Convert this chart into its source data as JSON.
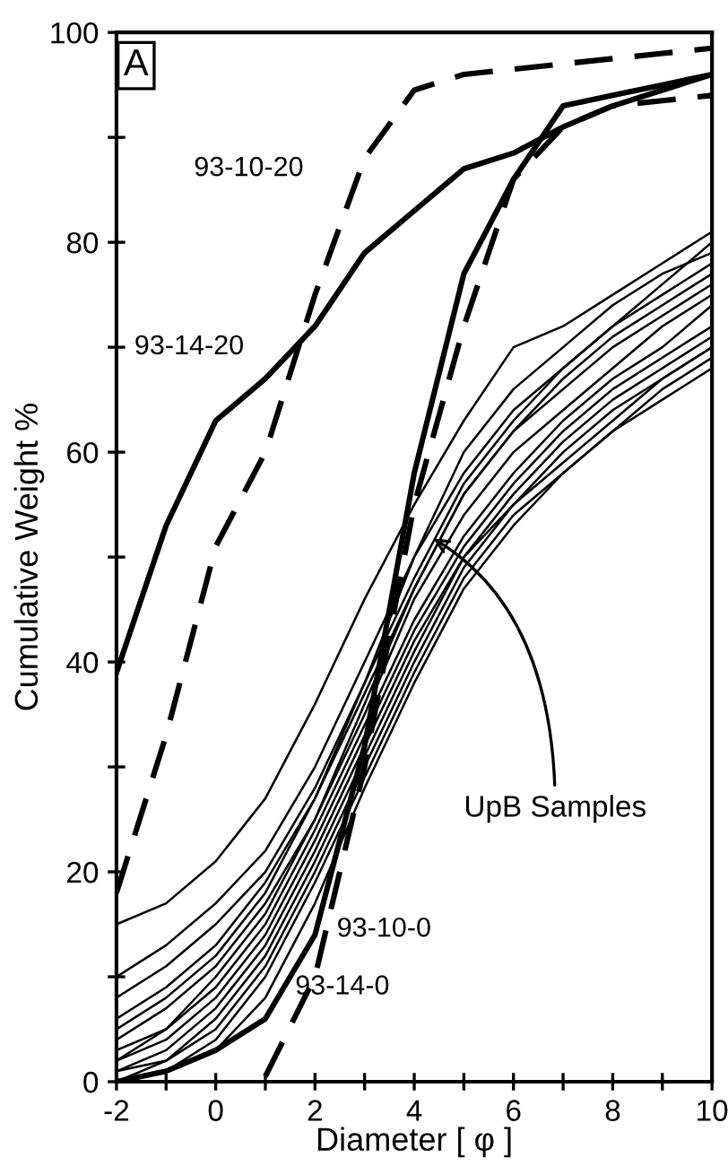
{
  "chart_data": {
    "type": "line",
    "xlabel": "Diameter [ φ ]",
    "ylabel": "Cumulative Weight %",
    "x": [
      -2,
      -1,
      0,
      1,
      2,
      3,
      4,
      5,
      6,
      7,
      8,
      9,
      10
    ],
    "xlim": [
      -2,
      10
    ],
    "ylim": [
      0,
      100
    ],
    "xticks": [
      -2,
      {
        "value": -1,
        "label": null
      },
      0,
      {
        "value": 1,
        "label": null
      },
      2,
      {
        "value": 3,
        "label": null
      },
      4,
      {
        "value": 5,
        "label": null
      },
      6,
      {
        "value": 7,
        "label": null
      },
      8,
      {
        "value": 9,
        "label": null
      },
      10
    ],
    "yticks": [
      0,
      {
        "value": 10,
        "label": null
      },
      20,
      {
        "value": 30,
        "label": null
      },
      40,
      {
        "value": 50,
        "label": null
      },
      60,
      {
        "value": 70,
        "label": null
      },
      80,
      {
        "value": 90,
        "label": null
      },
      100
    ],
    "grid": false,
    "legend": false,
    "marker": "none",
    "annotations": [
      "A",
      "UpB Samples"
    ],
    "series": [
      {
        "name": "93-10-20",
        "color": "#000000",
        "line_style": "dashed",
        "values": [
          18,
          33,
          51,
          60,
          75,
          88,
          94.5,
          96,
          96.5,
          97,
          97.5,
          98,
          98.5
        ]
      },
      {
        "name": "93-14-20",
        "color": "#000000",
        "line_style": "solid",
        "values": [
          39,
          53,
          63,
          67,
          72,
          79,
          83,
          87,
          88.5,
          91,
          93,
          94.5,
          96
        ]
      },
      {
        "name": "93-10-0",
        "color": "#000000",
        "line_style": "dashed",
        "values": [
          null,
          null,
          null,
          0.5,
          10,
          30,
          55,
          72,
          86,
          91,
          93,
          93.5,
          94
        ]
      },
      {
        "name": "93-14-0",
        "color": "#000000",
        "line_style": "solid",
        "values": [
          0,
          1,
          3,
          6,
          14,
          32,
          58,
          77,
          86,
          93,
          94,
          95,
          96
        ]
      },
      {
        "color": "#000000",
        "values": [
          15,
          17,
          21,
          27,
          36,
          46,
          55,
          63,
          70,
          72,
          75,
          78,
          81
        ]
      },
      {
        "color": "#000000",
        "values": [
          10,
          13,
          17,
          22,
          30,
          40,
          50,
          60,
          66,
          70,
          74,
          77,
          79
        ]
      },
      {
        "color": "#000000",
        "values": [
          8,
          11,
          15,
          20,
          28,
          38,
          48,
          57,
          63,
          68,
          72,
          76,
          80
        ]
      },
      {
        "color": "#000000",
        "values": [
          6,
          9,
          13,
          19,
          27,
          37,
          47,
          56,
          62,
          66,
          70,
          73,
          76
        ]
      },
      {
        "color": "#000000",
        "values": [
          4,
          7,
          11,
          17,
          25,
          35,
          46,
          54,
          60,
          64,
          68,
          72,
          75
        ]
      },
      {
        "color": "#000000",
        "values": [
          3,
          5,
          9,
          15,
          24,
          34,
          44,
          52,
          58,
          63,
          67,
          70,
          74
        ]
      },
      {
        "color": "#000000",
        "values": [
          2,
          4,
          8,
          14,
          23,
          33,
          43,
          51,
          57,
          62,
          66,
          69,
          72
        ]
      },
      {
        "color": "#000000",
        "values": [
          1,
          3,
          7,
          13,
          22,
          32,
          42,
          50,
          56,
          61,
          65,
          68,
          71
        ]
      },
      {
        "color": "#000000",
        "values": [
          1,
          2,
          6,
          12,
          21,
          31,
          41,
          50,
          55,
          60,
          64,
          67,
          70
        ]
      },
      {
        "color": "#000000",
        "values": [
          0,
          2,
          5,
          11,
          20,
          30,
          40,
          49,
          55,
          59,
          63,
          67,
          70
        ]
      },
      {
        "color": "#000000",
        "values": [
          0,
          1,
          4,
          10,
          19,
          29,
          39,
          48,
          54,
          58,
          62,
          66,
          69
        ]
      },
      {
        "color": "#000000",
        "values": [
          0,
          1,
          3,
          8,
          17,
          28,
          38,
          47,
          53,
          58,
          62,
          65,
          68
        ]
      },
      {
        "color": "#000000",
        "values": [
          2,
          5,
          10,
          16,
          25,
          36,
          47,
          56,
          62,
          67,
          71,
          74,
          77
        ]
      },
      {
        "color": "#000000",
        "values": [
          5,
          8,
          12,
          18,
          27,
          38,
          50,
          58,
          64,
          68,
          72,
          75,
          78
        ]
      }
    ]
  }
}
